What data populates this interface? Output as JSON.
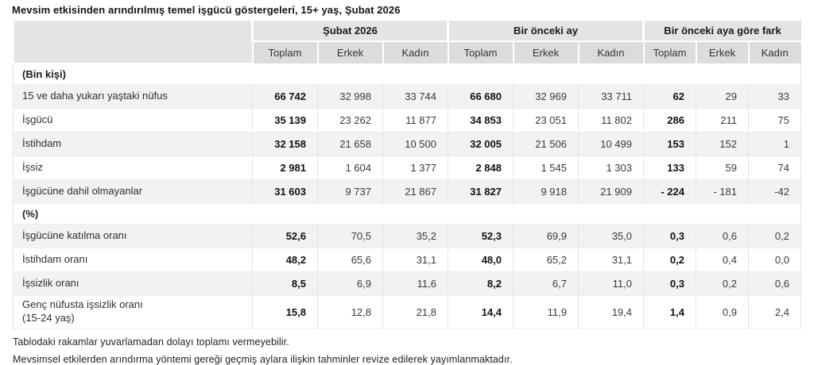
{
  "page": {
    "title": "Mevsim etkisinden arındırılmış temel işgücü göstergeleri, 15+ yaş, Şubat 2026",
    "footnotes": [
      "Tablodaki rakamlar yuvarlamadan dolayı toplamı vermeyebilir.",
      "Mevsimsel etkilerden arındırma yöntemi gereği geçmiş aylara ilişkin tahminler revize edilerek yayımlanmaktadır."
    ]
  },
  "colors": {
    "header_group_bg": "#e4e4e4",
    "header_sub_bg": "#dcdcdc",
    "stripe_row_bg": "#f2f2f2",
    "regular_text": "#333333",
    "bold_text": "#111111"
  },
  "chart_data": {
    "type": "table",
    "title": "Mevsim etkisinden arındırılmış temel işgücü göstergeleri, 15+ yaş, Şubat 2026",
    "column_groups": [
      "Şubat 2026",
      "Bir önceki ay",
      "Bir önceki aya göre fark"
    ],
    "sub_columns": [
      "Toplam",
      "Erkek",
      "Kadın"
    ],
    "bold_sub_column": "Toplam",
    "sections": [
      {
        "label": "(Bin kişi)",
        "rows": [
          {
            "label": "15 ve daha yukarı yaştaki nüfus",
            "values": [
              "66 742",
              "32 998",
              "33 744",
              "66 680",
              "32 969",
              "33 711",
              "62",
              "29",
              "33"
            ]
          },
          {
            "label": "İşgücü",
            "values": [
              "35 139",
              "23 262",
              "11 877",
              "34 853",
              "23 051",
              "11 802",
              "286",
              "211",
              "75"
            ]
          },
          {
            "label": "İstihdam",
            "values": [
              "32 158",
              "21 658",
              "10 500",
              "32 005",
              "21 506",
              "10 499",
              "153",
              "152",
              "1"
            ]
          },
          {
            "label": "İşsiz",
            "values": [
              "2 981",
              "1 604",
              "1 377",
              "2 848",
              "1 545",
              "1 303",
              "133",
              "59",
              "74"
            ]
          },
          {
            "label": "İşgücüne dahil olmayanlar",
            "values": [
              "31 603",
              "9 737",
              "21 867",
              "31 827",
              "9 918",
              "21 909",
              "- 224",
              "- 181",
              "-42"
            ]
          }
        ]
      },
      {
        "label": "(%)",
        "rows": [
          {
            "label": "İşgücüne katılma oranı",
            "values": [
              "52,6",
              "70,5",
              "35,2",
              "52,3",
              "69,9",
              "35,0",
              "0,3",
              "0,6",
              "0,2"
            ]
          },
          {
            "label": "İstihdam oranı",
            "values": [
              "48,2",
              "65,6",
              "31,1",
              "48,0",
              "65,2",
              "31,1",
              "0,2",
              "0,4",
              "0,0"
            ]
          },
          {
            "label": "İşsizlik oranı",
            "values": [
              "8,5",
              "6,9",
              "11,6",
              "8,2",
              "6,7",
              "11,0",
              "0,3",
              "0,2",
              "0,6"
            ]
          },
          {
            "label": "Genç nüfusta işsizlik oranı\n(15-24 yaş)",
            "values": [
              "15,8",
              "12,8",
              "21,8",
              "14,4",
              "11,9",
              "19,4",
              "1,4",
              "0,9",
              "2,4"
            ]
          }
        ]
      }
    ]
  }
}
